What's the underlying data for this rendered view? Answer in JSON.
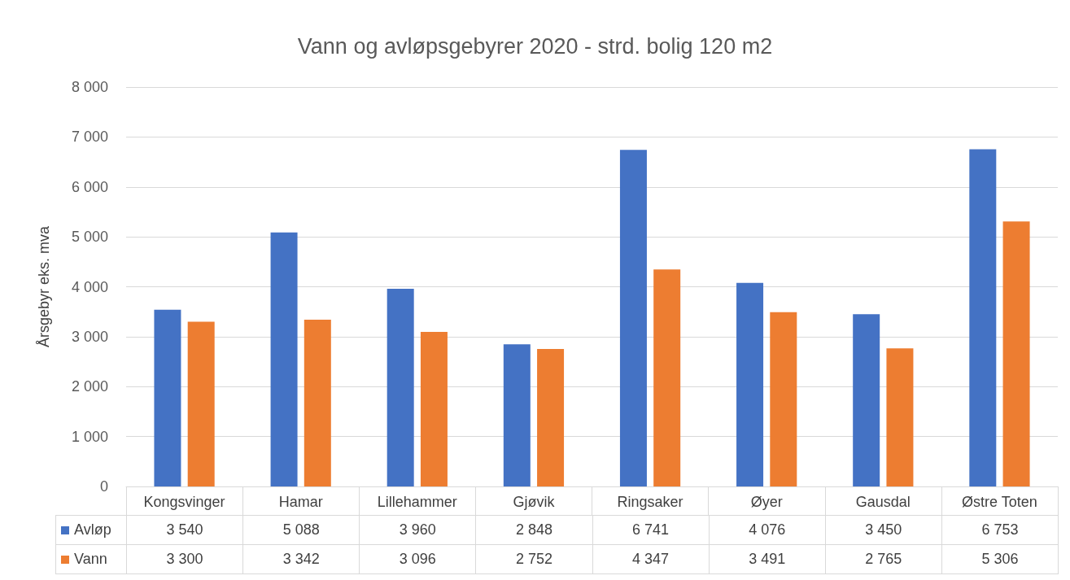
{
  "chart_data": {
    "type": "bar",
    "title": "Vann og avløpsgebyrer 2020 - strd. bolig 120 m2",
    "ylabel": "Årsgebyr eks. mva",
    "categories": [
      "Kongsvinger",
      "Hamar",
      "Lillehammer",
      "Gjøvik",
      "Ringsaker",
      "Øyer",
      "Gausdal",
      "Østre Toten"
    ],
    "series": [
      {
        "name": "Avløp",
        "color": "#4472c4",
        "values": [
          3540,
          5088,
          3960,
          2848,
          6741,
          4076,
          3450,
          6753
        ]
      },
      {
        "name": "Vann",
        "color": "#ed7d31",
        "values": [
          3300,
          3342,
          3096,
          2752,
          4347,
          3491,
          2765,
          5306
        ]
      }
    ],
    "ylim": [
      0,
      8000
    ],
    "yticks": [
      0,
      {
        "value": 1000,
        "label": "1 000"
      },
      {
        "value": 2000,
        "label": "2 000"
      },
      {
        "value": 3000,
        "label": "3 000"
      },
      {
        "value": 4000,
        "label": "4 000"
      },
      {
        "value": 5000,
        "label": "5 000"
      },
      {
        "value": 6000,
        "label": "6 000"
      },
      {
        "value": 7000,
        "label": "7 000"
      },
      {
        "value": 8000,
        "label": "8 000"
      }
    ],
    "grid": "y",
    "legend": "bottom",
    "data_labels": true
  }
}
